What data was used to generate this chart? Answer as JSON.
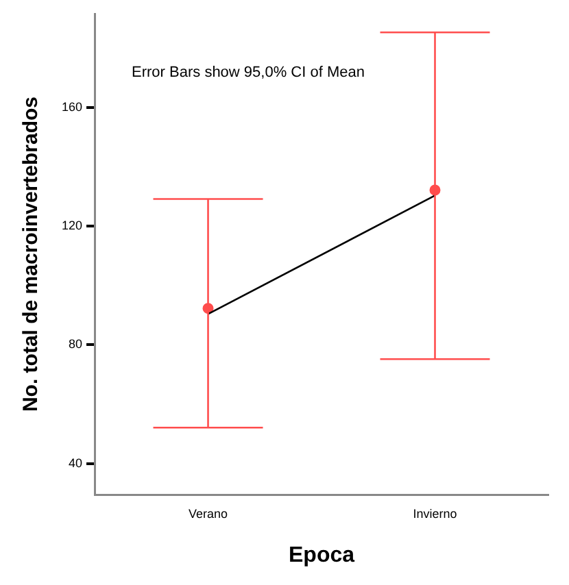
{
  "chart_data": {
    "type": "line",
    "xlabel": "Epoca",
    "ylabel": "No. total de macroinvertebrados",
    "categories": [
      "Verano",
      "Invierno"
    ],
    "series": [
      {
        "color": "#000000",
        "values": [
          90.4,
          130.4
        ],
        "marker": "none"
      },
      {
        "type": "scatter",
        "color": "#ff4d4d",
        "x": [
          "Verano",
          "Invierno"
        ],
        "values": [
          92.3,
          132.2
        ],
        "marker": "circle",
        "errors": [
          [
            52.1,
            129.2
          ],
          [
            75.2,
            185.4
          ]
        ]
      }
    ],
    "ylim": [
      29.5,
      191.7
    ],
    "yticks": [
      40,
      80,
      120,
      160
    ],
    "grid": false,
    "legend": false,
    "annotations": [
      "Error Bars show 95,0% CI of Mean"
    ]
  }
}
